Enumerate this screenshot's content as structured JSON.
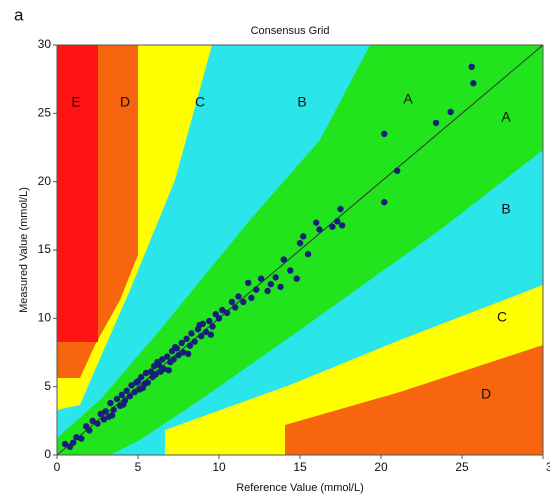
{
  "panel_label": "a",
  "chart_data": {
    "type": "scatter",
    "title": "Consensus Grid",
    "x_label": "Reference Value (mmol/L)",
    "y_label": "Measured Value (mmol/L)",
    "xlim": [
      0,
      30
    ],
    "ylim": [
      0,
      30
    ],
    "xticks": [
      0,
      5,
      10,
      15,
      20,
      25,
      30
    ],
    "yticks": [
      0,
      5,
      10,
      15,
      20,
      25,
      30
    ],
    "zone_labels": [
      "E",
      "D",
      "C",
      "B",
      "A",
      "A",
      "B",
      "C",
      "D"
    ],
    "series": [
      {
        "color": "#16207a",
        "x": [
          0.5,
          0.8,
          1.2,
          1.5,
          1.8,
          2,
          2.2,
          2.5,
          2.7,
          3,
          3.2,
          3.3,
          3.5,
          3.7,
          3.9,
          4,
          4.2,
          4.3,
          4.5,
          4.6,
          4.8,
          5,
          5.1,
          5.2,
          5.4,
          5.5,
          5.6,
          5.8,
          5.9,
          6,
          6.1,
          6.2,
          6.4,
          6.5,
          6.6,
          6.8,
          7,
          7.1,
          7.2,
          7.4,
          7.5,
          7.7,
          7.8,
          8,
          8.2,
          8.3,
          8.5,
          8.7,
          8.9,
          9,
          9.2,
          9.4,
          9.6,
          9.8,
          10,
          10.2,
          10.5,
          10.8,
          11,
          11.2,
          11.5,
          11.8,
          12,
          12.3,
          12.6,
          13,
          13.2,
          13.5,
          13.8,
          14,
          14.4,
          14.8,
          15,
          15.2,
          15.5,
          16,
          16.2,
          17,
          17.3,
          17.5,
          17.6,
          20.2,
          20.2,
          21,
          23.4,
          24.3,
          25.6,
          25.7,
          3.4,
          4.1,
          4.9,
          5.3,
          6.3,
          6.9,
          7.3,
          8.1,
          8.8,
          9.5,
          2.9,
          1.0
        ],
        "values": [
          0.8,
          0.6,
          1.3,
          1.2,
          2.1,
          1.8,
          2.5,
          2.3,
          3,
          3.2,
          2.8,
          3.8,
          3.3,
          4.1,
          3.6,
          4.4,
          4,
          4.7,
          4.3,
          5.1,
          4.6,
          5.4,
          4.8,
          5.7,
          5.2,
          6,
          5.3,
          6.1,
          5.7,
          6.5,
          5.9,
          6.8,
          6.1,
          7,
          6.3,
          7.2,
          6.8,
          7.6,
          7,
          7.8,
          7.3,
          8.2,
          7.5,
          8.5,
          8,
          8.9,
          8.3,
          9.2,
          8.7,
          9.6,
          9,
          9.8,
          9.4,
          10.3,
          10,
          10.6,
          10.4,
          11.2,
          10.8,
          11.6,
          11.2,
          12.6,
          11.5,
          12.1,
          12.9,
          12,
          12.5,
          13,
          12.3,
          14.3,
          13.5,
          12.9,
          15.5,
          16,
          14.7,
          17,
          16.5,
          16.7,
          17.1,
          18,
          16.8,
          23.5,
          18.5,
          20.8,
          24.3,
          25.1,
          28.4,
          27.2,
          2.9,
          3.7,
          5.3,
          4.9,
          6.6,
          6.2,
          7.9,
          7.4,
          9.5,
          8.8,
          2.6,
          0.9
        ]
      }
    ]
  }
}
